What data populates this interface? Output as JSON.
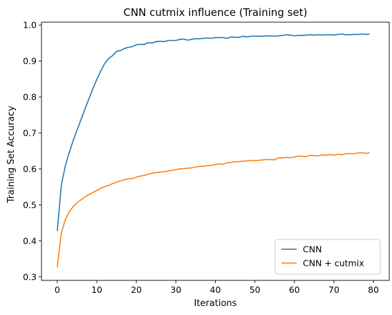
{
  "chart_data": {
    "type": "line",
    "title": "CNN cutmix influence (Training set)",
    "xlabel": "Iterations",
    "ylabel": "Training Set Accuracy",
    "xlim": [
      -4,
      84
    ],
    "ylim": [
      0.29,
      1.008
    ],
    "xticks": [
      0,
      10,
      20,
      30,
      40,
      50,
      60,
      70,
      80
    ],
    "yticks": [
      0.3,
      0.4,
      0.5,
      0.6,
      0.7,
      0.8,
      0.9,
      1.0
    ],
    "ytick_labels": [
      "0.3",
      "0.4",
      "0.5",
      "0.6",
      "0.7",
      "0.8",
      "0.9",
      "1.0"
    ],
    "grid": false,
    "legend": "lower-right",
    "series": [
      {
        "name": "CNN",
        "color": "#1f77b4",
        "x": [
          0,
          1,
          2,
          3,
          4,
          5,
          6,
          7,
          8,
          9,
          10,
          11,
          12,
          13,
          14,
          15,
          16,
          17,
          18,
          19,
          20,
          21,
          22,
          23,
          24,
          25,
          26,
          27,
          28,
          29,
          30,
          31,
          32,
          33,
          34,
          35,
          36,
          37,
          38,
          39,
          40,
          41,
          42,
          43,
          44,
          45,
          46,
          47,
          48,
          49,
          50,
          51,
          52,
          53,
          54,
          55,
          56,
          57,
          58,
          59,
          60,
          61,
          62,
          63,
          64,
          65,
          66,
          67,
          68,
          69,
          70,
          71,
          72,
          73,
          74,
          75,
          76,
          77,
          78,
          79
        ],
        "values": [
          0.427,
          0.553,
          0.607,
          0.645,
          0.678,
          0.708,
          0.737,
          0.766,
          0.795,
          0.823,
          0.849,
          0.872,
          0.893,
          0.907,
          0.915,
          0.927,
          0.929,
          0.935,
          0.938,
          0.94,
          0.945,
          0.946,
          0.946,
          0.951,
          0.95,
          0.954,
          0.955,
          0.954,
          0.957,
          0.957,
          0.957,
          0.96,
          0.961,
          0.958,
          0.96,
          0.962,
          0.962,
          0.963,
          0.964,
          0.963,
          0.965,
          0.965,
          0.965,
          0.963,
          0.967,
          0.966,
          0.966,
          0.969,
          0.967,
          0.969,
          0.969,
          0.969,
          0.969,
          0.97,
          0.97,
          0.969,
          0.97,
          0.971,
          0.973,
          0.972,
          0.97,
          0.971,
          0.971,
          0.972,
          0.973,
          0.972,
          0.973,
          0.972,
          0.973,
          0.973,
          0.972,
          0.974,
          0.975,
          0.973,
          0.973,
          0.974,
          0.974,
          0.975,
          0.974,
          0.975
        ]
      },
      {
        "name": "CNN + cutmix",
        "color": "#ff7f0e",
        "x": [
          0,
          1,
          2,
          3,
          4,
          5,
          6,
          7,
          8,
          9,
          10,
          11,
          12,
          13,
          14,
          15,
          16,
          17,
          18,
          19,
          20,
          21,
          22,
          23,
          24,
          25,
          26,
          27,
          28,
          29,
          30,
          31,
          32,
          33,
          34,
          35,
          36,
          37,
          38,
          39,
          40,
          41,
          42,
          43,
          44,
          45,
          46,
          47,
          48,
          49,
          50,
          51,
          52,
          53,
          54,
          55,
          56,
          57,
          58,
          59,
          60,
          61,
          62,
          63,
          64,
          65,
          66,
          67,
          68,
          69,
          70,
          71,
          72,
          73,
          74,
          75,
          76,
          77,
          78,
          79
        ],
        "values": [
          0.326,
          0.421,
          0.458,
          0.48,
          0.495,
          0.506,
          0.514,
          0.522,
          0.529,
          0.534,
          0.54,
          0.546,
          0.551,
          0.554,
          0.559,
          0.563,
          0.567,
          0.57,
          0.572,
          0.573,
          0.577,
          0.58,
          0.582,
          0.585,
          0.588,
          0.59,
          0.591,
          0.592,
          0.594,
          0.596,
          0.598,
          0.6,
          0.601,
          0.602,
          0.603,
          0.605,
          0.607,
          0.607,
          0.609,
          0.61,
          0.612,
          0.614,
          0.613,
          0.617,
          0.618,
          0.62,
          0.62,
          0.622,
          0.622,
          0.624,
          0.623,
          0.624,
          0.625,
          0.626,
          0.626,
          0.625,
          0.631,
          0.63,
          0.632,
          0.631,
          0.633,
          0.636,
          0.635,
          0.634,
          0.638,
          0.637,
          0.636,
          0.639,
          0.638,
          0.64,
          0.638,
          0.641,
          0.639,
          0.642,
          0.643,
          0.642,
          0.644,
          0.645,
          0.643,
          0.645
        ]
      }
    ]
  }
}
